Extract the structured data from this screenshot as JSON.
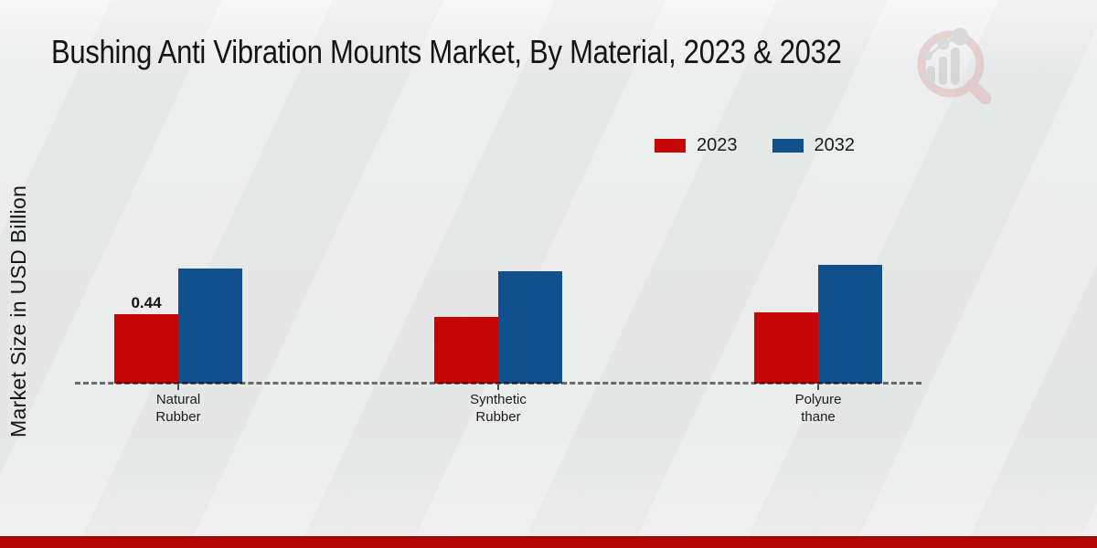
{
  "title": "Bushing Anti Vibration Mounts Market, By Material, 2023 & 2032",
  "y_axis_label": "Market Size in USD Billion",
  "colors": {
    "series_2023": "#c60606",
    "series_2032": "#10508c",
    "bottom_strip": "#b20505",
    "baseline_dash": "#5a5a5a"
  },
  "watermark": {
    "icon": "magnifier-bar-chart-logo"
  },
  "chart_data": {
    "type": "bar",
    "title": "Bushing Anti Vibration Mounts Market, By Material, 2023 & 2032",
    "ylabel": "Market Size in USD Billion",
    "xlabel": "",
    "categories": [
      "Natural Rubber",
      "Synthetic Rubber",
      "Polyurethane"
    ],
    "category_label_lines": [
      [
        "Natural",
        "Rubber"
      ],
      [
        "Synthetic",
        "Rubber"
      ],
      [
        "Polyure",
        "thane"
      ]
    ],
    "series": [
      {
        "name": "2023",
        "color": "#c60606",
        "values": [
          0.44,
          0.42,
          0.45
        ]
      },
      {
        "name": "2032",
        "color": "#10508c",
        "values": [
          0.73,
          0.71,
          0.75
        ]
      }
    ],
    "annotations": [
      {
        "series": "2023",
        "category_index": 0,
        "text": "0.44"
      }
    ],
    "ylim": [
      0,
      1
    ],
    "grid": "none (dashed zero baseline only)",
    "legend_position": "top-right"
  }
}
